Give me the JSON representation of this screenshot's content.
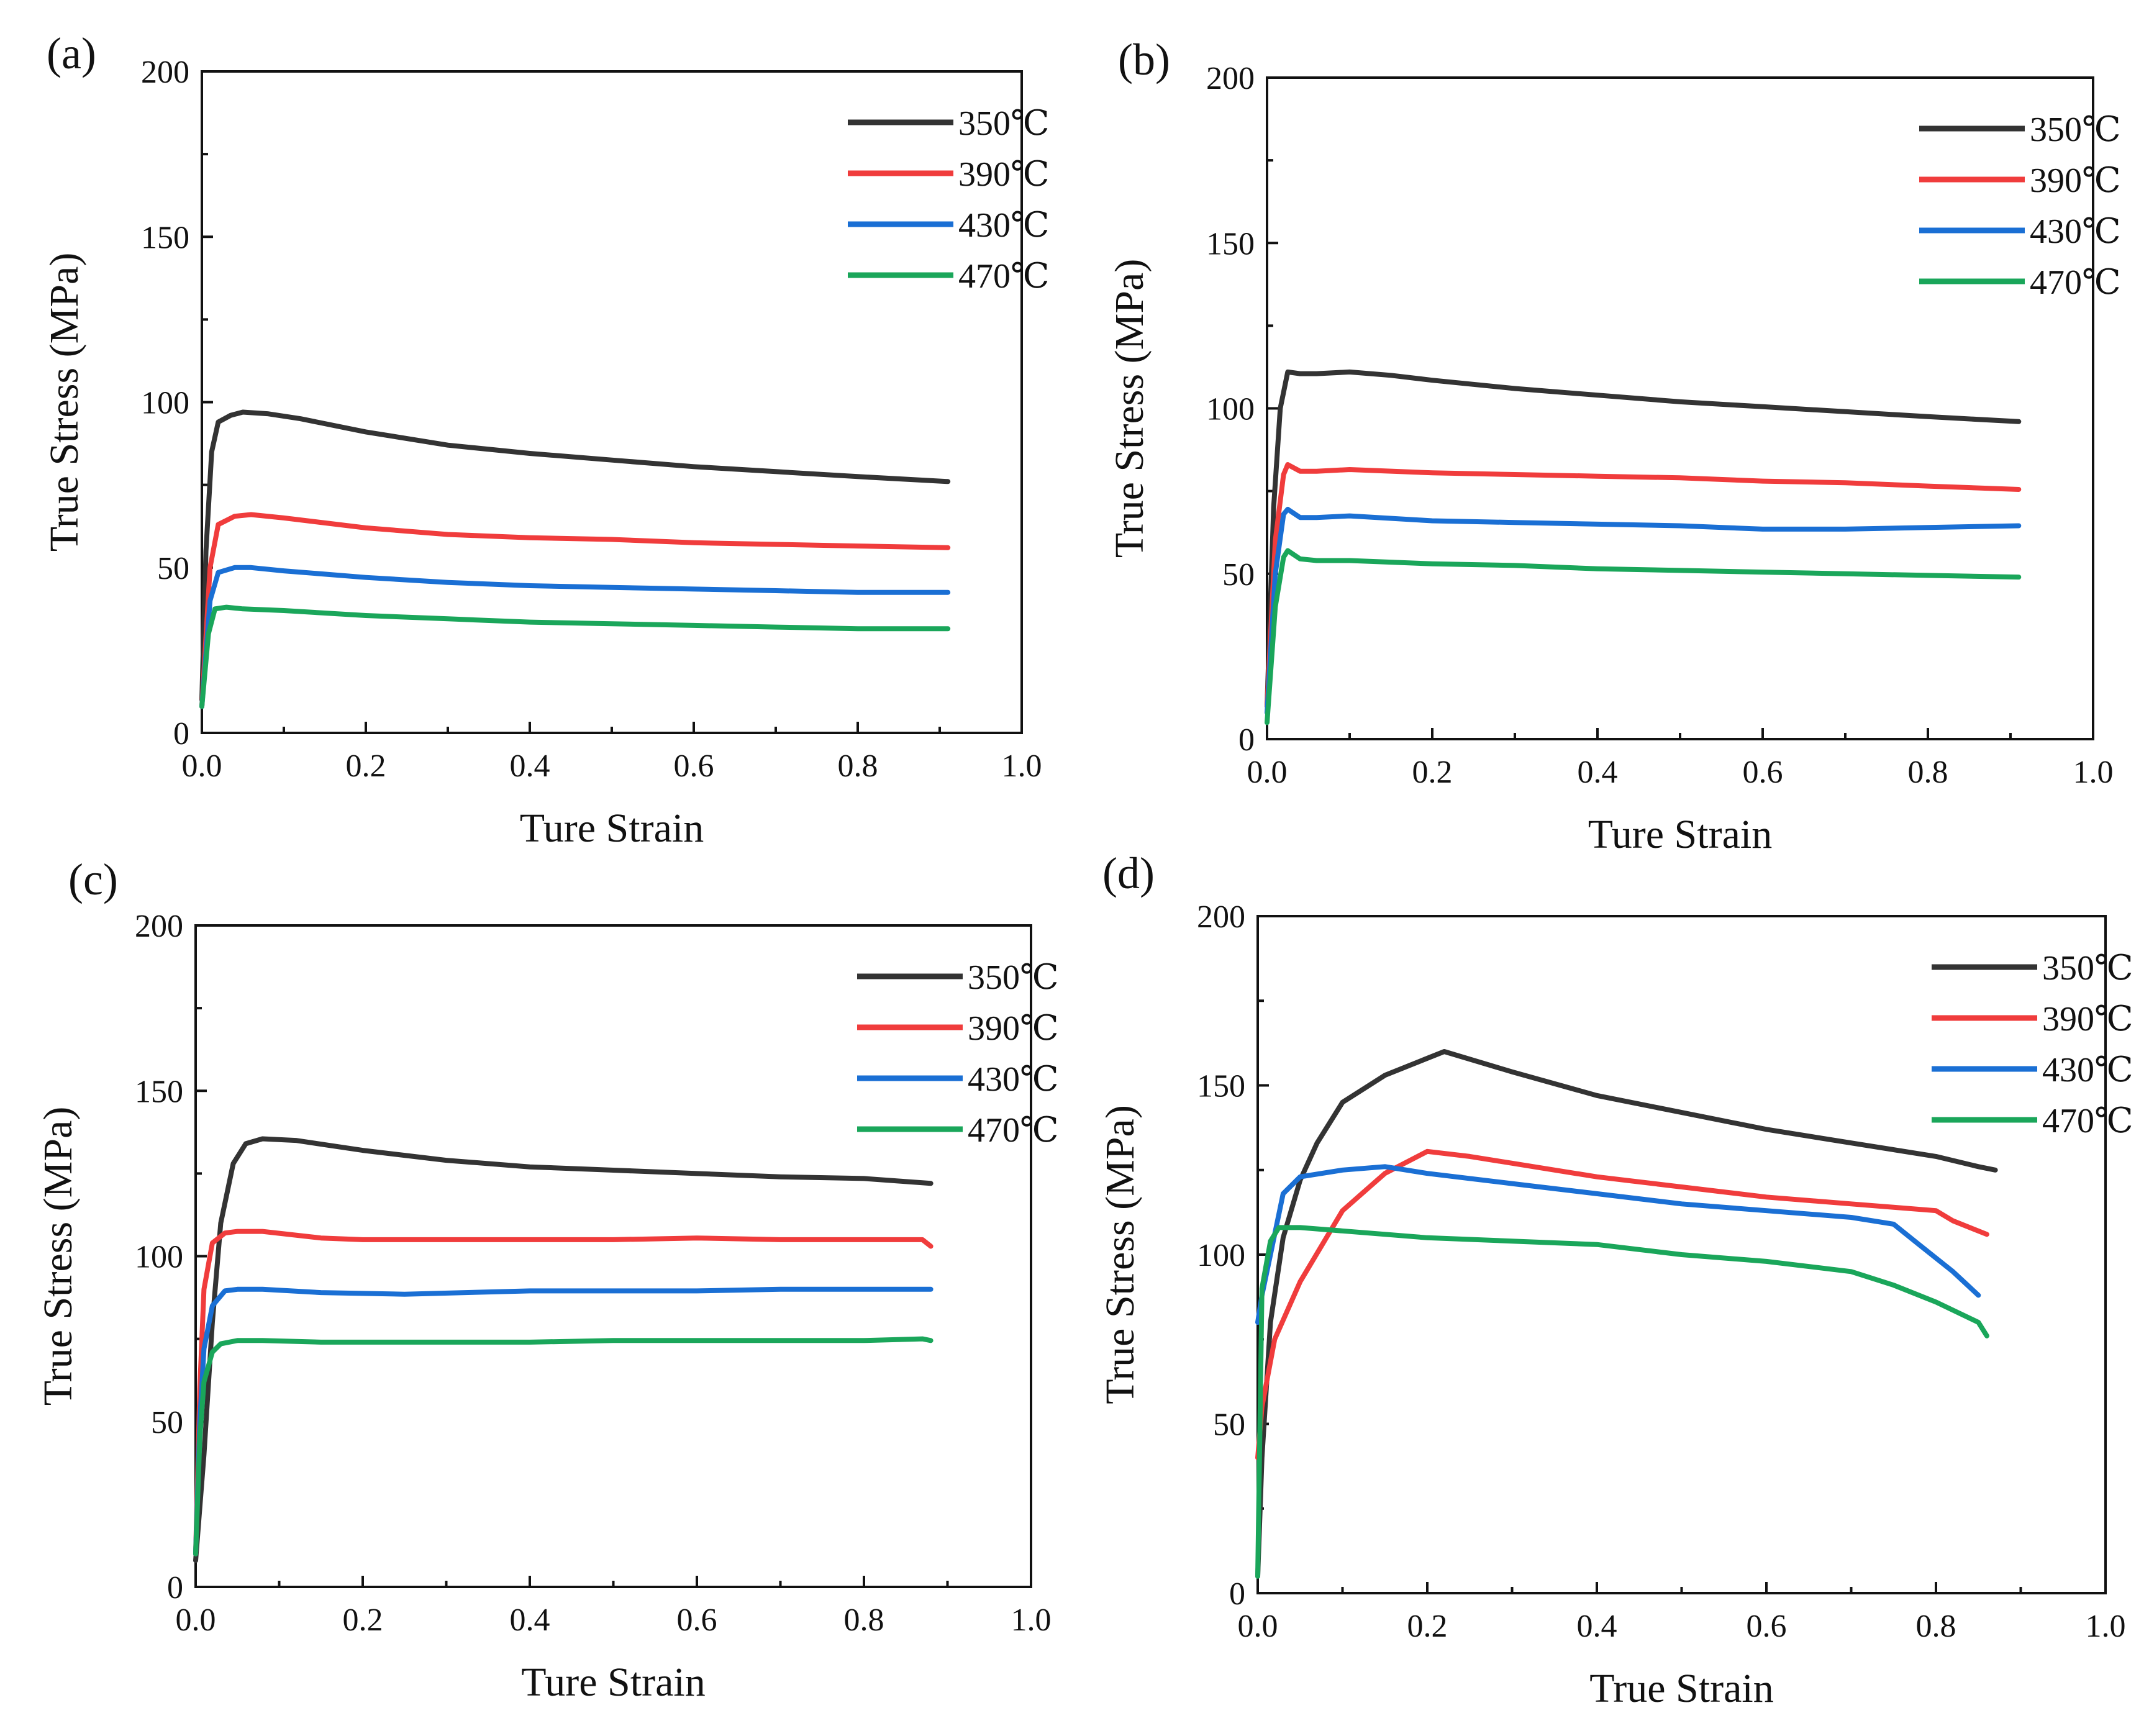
{
  "colors": {
    "350": "#333333",
    "390": "#f03c3c",
    "430": "#1a6fd4",
    "470": "#1aa65a",
    "axis": "#111111"
  },
  "chart_data": [
    {
      "panel": "(a)",
      "type": "line",
      "xlabel": "Ture Strain",
      "ylabel": "True Stress (MPa)",
      "xlim": [
        0.0,
        1.0
      ],
      "ylim": [
        0,
        200
      ],
      "x_ticks": [
        "0.0",
        "0.2",
        "0.4",
        "0.6",
        "0.8",
        "1.0"
      ],
      "y_ticks": [
        "0",
        "50",
        "100",
        "150",
        "200"
      ],
      "grid": false,
      "legend_position": "top-right",
      "series": [
        {
          "name": "350℃",
          "color": "#333333",
          "x": [
            0.0,
            0.005,
            0.012,
            0.02,
            0.035,
            0.05,
            0.08,
            0.12,
            0.2,
            0.3,
            0.4,
            0.5,
            0.6,
            0.7,
            0.8,
            0.91
          ],
          "y": [
            10,
            55,
            85,
            94,
            96,
            97,
            96.5,
            95,
            91,
            87,
            84.5,
            82.5,
            80.5,
            79,
            77.5,
            76
          ]
        },
        {
          "name": "390℃",
          "color": "#f03c3c",
          "x": [
            0.0,
            0.01,
            0.02,
            0.04,
            0.06,
            0.1,
            0.2,
            0.3,
            0.4,
            0.5,
            0.6,
            0.7,
            0.8,
            0.91
          ],
          "y": [
            8,
            50,
            63,
            65.5,
            66,
            65,
            62,
            60,
            59,
            58.5,
            57.5,
            57,
            56.5,
            56
          ]
        },
        {
          "name": "430℃",
          "color": "#1a6fd4",
          "x": [
            0.0,
            0.01,
            0.02,
            0.04,
            0.06,
            0.1,
            0.2,
            0.3,
            0.4,
            0.5,
            0.6,
            0.7,
            0.8,
            0.91
          ],
          "y": [
            8,
            40,
            48.5,
            50,
            50,
            49,
            47,
            45.5,
            44.5,
            44,
            43.5,
            43,
            42.5,
            42.5
          ]
        },
        {
          "name": "470℃",
          "color": "#1aa65a",
          "x": [
            0.0,
            0.008,
            0.016,
            0.03,
            0.05,
            0.1,
            0.2,
            0.3,
            0.4,
            0.5,
            0.6,
            0.7,
            0.8,
            0.91
          ],
          "y": [
            8,
            30,
            37.5,
            38,
            37.5,
            37,
            35.5,
            34.5,
            33.5,
            33,
            32.5,
            32,
            31.5,
            31.5
          ]
        }
      ]
    },
    {
      "panel": "(b)",
      "type": "line",
      "xlabel": "Ture Strain",
      "ylabel": "True Stress (MPa)",
      "xlim": [
        0.0,
        1.0
      ],
      "ylim": [
        0,
        200
      ],
      "x_ticks": [
        "0.0",
        "0.2",
        "0.4",
        "0.6",
        "0.8",
        "1.0"
      ],
      "y_ticks": [
        "0",
        "50",
        "100",
        "150",
        "200"
      ],
      "grid": false,
      "legend_position": "top-right",
      "series": [
        {
          "name": "350℃",
          "color": "#333333",
          "x": [
            0.0,
            0.008,
            0.016,
            0.025,
            0.04,
            0.06,
            0.1,
            0.15,
            0.2,
            0.3,
            0.4,
            0.5,
            0.6,
            0.7,
            0.8,
            0.91
          ],
          "y": [
            10,
            70,
            100,
            111,
            110.5,
            110.5,
            111,
            110,
            108.5,
            106,
            104,
            102,
            100.5,
            99,
            97.5,
            96
          ]
        },
        {
          "name": "390℃",
          "color": "#f03c3c",
          "x": [
            0.0,
            0.01,
            0.02,
            0.025,
            0.04,
            0.06,
            0.1,
            0.2,
            0.3,
            0.4,
            0.5,
            0.6,
            0.7,
            0.8,
            0.91
          ],
          "y": [
            10,
            60,
            80,
            83,
            81,
            81,
            81.5,
            80.5,
            80,
            79.5,
            79,
            78,
            77.5,
            76.5,
            75.5
          ]
        },
        {
          "name": "430℃",
          "color": "#1a6fd4",
          "x": [
            0.0,
            0.01,
            0.02,
            0.025,
            0.04,
            0.06,
            0.1,
            0.2,
            0.3,
            0.4,
            0.5,
            0.6,
            0.7,
            0.8,
            0.91
          ],
          "y": [
            8,
            50,
            68,
            69.5,
            67,
            67,
            67.5,
            66,
            65.5,
            65,
            64.5,
            63.5,
            63.5,
            64,
            64.5
          ]
        },
        {
          "name": "470℃",
          "color": "#1aa65a",
          "x": [
            0.0,
            0.01,
            0.02,
            0.025,
            0.04,
            0.06,
            0.1,
            0.2,
            0.3,
            0.4,
            0.5,
            0.6,
            0.7,
            0.8,
            0.91
          ],
          "y": [
            5,
            40,
            55,
            57,
            54.5,
            54,
            54,
            53,
            52.5,
            51.5,
            51,
            50.5,
            50,
            49.5,
            49
          ]
        }
      ]
    },
    {
      "panel": "(c)",
      "type": "line",
      "xlabel": "Ture Strain",
      "ylabel": "True Stress (MPa)",
      "xlim": [
        0.0,
        1.0
      ],
      "ylim": [
        0,
        200
      ],
      "x_ticks": [
        "0.0",
        "0.2",
        "0.4",
        "0.6",
        "0.8",
        "1.0"
      ],
      "y_ticks": [
        "0",
        "50",
        "100",
        "150",
        "200"
      ],
      "grid": false,
      "legend_position": "top-right",
      "series": [
        {
          "name": "350℃",
          "color": "#333333",
          "x": [
            0.0,
            0.01,
            0.02,
            0.03,
            0.045,
            0.06,
            0.08,
            0.12,
            0.2,
            0.3,
            0.4,
            0.5,
            0.6,
            0.7,
            0.8,
            0.88
          ],
          "y": [
            8,
            40,
            80,
            110,
            128,
            134,
            135.5,
            135,
            132,
            129,
            127,
            126,
            125,
            124,
            123.5,
            122
          ]
        },
        {
          "name": "390℃",
          "color": "#f03c3c",
          "x": [
            0.0,
            0.005,
            0.01,
            0.02,
            0.035,
            0.05,
            0.08,
            0.15,
            0.2,
            0.3,
            0.4,
            0.5,
            0.6,
            0.7,
            0.8,
            0.87,
            0.88
          ],
          "y": [
            10,
            60,
            90,
            104,
            107,
            107.5,
            107.5,
            105.5,
            105,
            105,
            105,
            105,
            105.5,
            105,
            105,
            105,
            103
          ]
        },
        {
          "name": "430℃",
          "color": "#1a6fd4",
          "x": [
            0.0,
            0.005,
            0.01,
            0.02,
            0.035,
            0.05,
            0.08,
            0.15,
            0.25,
            0.4,
            0.5,
            0.6,
            0.7,
            0.8,
            0.88
          ],
          "y": [
            10,
            50,
            72,
            85,
            89.5,
            90,
            90,
            89,
            88.5,
            89.5,
            89.5,
            89.5,
            90,
            90,
            90
          ]
        },
        {
          "name": "470℃",
          "color": "#1aa65a",
          "x": [
            0.0,
            0.005,
            0.01,
            0.02,
            0.03,
            0.05,
            0.08,
            0.15,
            0.25,
            0.4,
            0.5,
            0.6,
            0.7,
            0.8,
            0.87,
            0.88
          ],
          "y": [
            10,
            45,
            62,
            71,
            73.5,
            74.5,
            74.5,
            74,
            74,
            74,
            74.5,
            74.5,
            74.5,
            74.5,
            75,
            74.5
          ]
        }
      ]
    },
    {
      "panel": "(d)",
      "type": "line",
      "xlabel": "True Strain",
      "ylabel": "True Stress (MPa)",
      "xlim": [
        0.0,
        1.0
      ],
      "ylim": [
        0,
        200
      ],
      "x_ticks": [
        "0.0",
        "0.2",
        "0.4",
        "0.6",
        "0.8",
        "1.0"
      ],
      "y_ticks": [
        "0",
        "50",
        "100",
        "150",
        "200"
      ],
      "grid": false,
      "legend_position": "top-right",
      "series": [
        {
          "name": "350℃",
          "color": "#333333",
          "x": [
            0.0,
            0.005,
            0.015,
            0.03,
            0.05,
            0.07,
            0.1,
            0.15,
            0.2,
            0.22,
            0.3,
            0.4,
            0.5,
            0.6,
            0.7,
            0.8,
            0.85,
            0.87
          ],
          "y": [
            5,
            40,
            80,
            105,
            122,
            133,
            145,
            153,
            158,
            160,
            154,
            147,
            142,
            137,
            133,
            129,
            126,
            125
          ]
        },
        {
          "name": "390℃",
          "color": "#f03c3c",
          "x": [
            0.0,
            0.005,
            0.02,
            0.05,
            0.1,
            0.15,
            0.2,
            0.25,
            0.3,
            0.4,
            0.5,
            0.6,
            0.7,
            0.75,
            0.8,
            0.82,
            0.86
          ],
          "y": [
            40,
            55,
            75,
            92,
            113,
            124,
            130.5,
            129,
            127,
            123,
            120,
            117,
            115,
            114,
            113,
            110,
            106
          ]
        },
        {
          "name": "430℃",
          "color": "#1a6fd4",
          "x": [
            0.0,
            0.005,
            0.015,
            0.03,
            0.05,
            0.1,
            0.15,
            0.2,
            0.3,
            0.4,
            0.5,
            0.6,
            0.7,
            0.75,
            0.78,
            0.82,
            0.85
          ],
          "y": [
            80,
            88,
            100,
            118,
            123,
            125,
            126,
            124,
            121,
            118,
            115,
            113,
            111,
            109,
            103,
            95,
            88
          ]
        },
        {
          "name": "470℃",
          "color": "#1aa65a",
          "x": [
            0.0,
            0.005,
            0.015,
            0.025,
            0.05,
            0.1,
            0.2,
            0.3,
            0.4,
            0.5,
            0.6,
            0.7,
            0.75,
            0.8,
            0.85,
            0.86
          ],
          "y": [
            5,
            90,
            104,
            108,
            108,
            107,
            105,
            104,
            103,
            100,
            98,
            95,
            91,
            86,
            80,
            76
          ]
        }
      ]
    }
  ]
}
